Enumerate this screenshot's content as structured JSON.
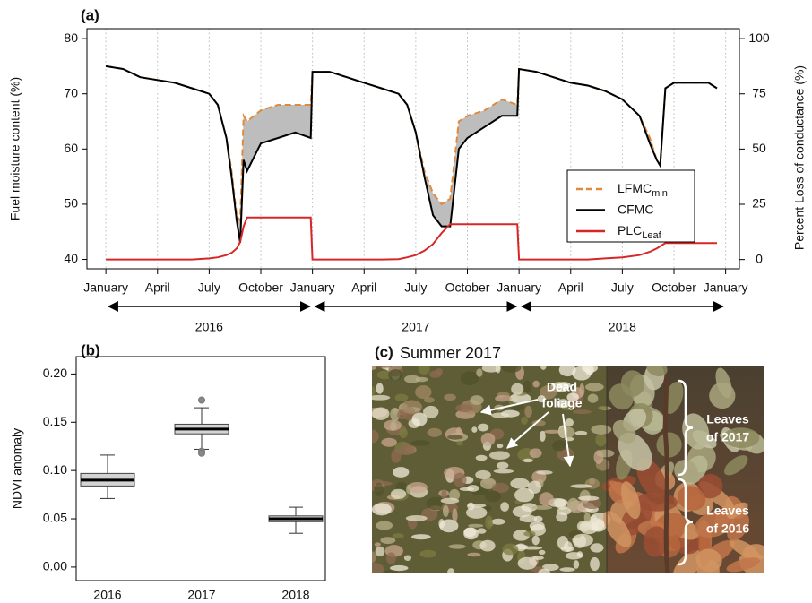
{
  "chart_data": [
    {
      "type": "line",
      "panel": "(a)",
      "y_label": "Fuel moisture content (%)",
      "y2_label": "Percent Loss  of conductance (%)",
      "x": [
        0,
        1,
        2,
        3,
        4,
        5,
        6,
        6.5,
        7,
        7.3,
        7.6,
        7.8,
        8,
        8.2,
        9,
        10,
        11,
        11.9,
        12,
        13,
        14,
        15,
        16,
        17,
        17.5,
        18,
        18.5,
        19,
        19.5,
        20,
        20.5,
        21,
        22,
        23,
        23.9,
        24,
        25,
        26,
        27,
        28,
        29,
        30,
        31,
        31.6,
        32,
        32.2,
        32.5,
        33,
        34,
        35,
        35.5
      ],
      "xlim": [
        -1.1,
        36.8
      ],
      "xticks": [
        {
          "value": 0,
          "label": "January"
        },
        {
          "value": 3,
          "label": "April"
        },
        {
          "value": 6,
          "label": "July"
        },
        {
          "value": 9,
          "label": "October"
        },
        {
          "value": 12,
          "label": "January"
        },
        {
          "value": 15,
          "label": "April"
        },
        {
          "value": 18,
          "label": "July"
        },
        {
          "value": 21,
          "label": "October"
        },
        {
          "value": 24,
          "label": "January"
        },
        {
          "value": 27,
          "label": "April"
        },
        {
          "value": 30,
          "label": "July"
        },
        {
          "value": 33,
          "label": "October"
        },
        {
          "value": 36,
          "label": "January"
        }
      ],
      "ylim": [
        38.3,
        81.8
      ],
      "yticks": [
        40,
        50,
        60,
        70,
        80
      ],
      "y2lim": [
        -4.2,
        104.5
      ],
      "y2ticks": [
        0,
        25,
        50,
        75,
        100
      ],
      "grid": "x",
      "legend_position": "center-right",
      "fill_between": {
        "series": [
          0,
          1
        ],
        "color": "#bdbdbd"
      },
      "year_bands": [
        {
          "label": "2016",
          "start": 0,
          "end": 12
        },
        {
          "label": "2017",
          "start": 12,
          "end": 24
        },
        {
          "label": "2018",
          "start": 24,
          "end": 36
        }
      ],
      "series": [
        {
          "name": "LFMC",
          "name_subscript": "min",
          "color": "#e08a3c",
          "linestyle": "dashed",
          "values": [
            75,
            74.5,
            73,
            72.5,
            72,
            71,
            70,
            68,
            62,
            56,
            48,
            47,
            66,
            65,
            67,
            68,
            68,
            68,
            74,
            74,
            73,
            72,
            71,
            70,
            68,
            63,
            56,
            52,
            50,
            51,
            65,
            66,
            67,
            69,
            68,
            74.5,
            74,
            73,
            72,
            71.5,
            70.5,
            69,
            66,
            62,
            58,
            57,
            71,
            72,
            72,
            72,
            71
          ]
        },
        {
          "name": "CFMC",
          "color": "#000000",
          "linestyle": "solid",
          "values": [
            75,
            74.5,
            73,
            72.5,
            72,
            71,
            70,
            68,
            62,
            55,
            47,
            43,
            58,
            56,
            61,
            62,
            63,
            62,
            74,
            74,
            73,
            72,
            71,
            70,
            68,
            63,
            55,
            48,
            46,
            46,
            60,
            62,
            64,
            66,
            66,
            74.5,
            74,
            73,
            72,
            71.5,
            70.5,
            69,
            66,
            61,
            58,
            57,
            71,
            72,
            72,
            72,
            71
          ]
        },
        {
          "name": "PLC",
          "name_subscript": "Leaf",
          "color": "#d62728",
          "linestyle": "solid",
          "axis": "y2",
          "values": [
            0,
            0,
            0,
            0,
            0,
            0,
            0.5,
            1,
            2,
            3,
            5,
            8,
            15,
            19,
            19,
            19,
            19,
            19,
            0,
            0,
            0,
            0,
            0,
            0.2,
            1,
            2,
            4,
            7,
            12,
            16,
            16,
            16,
            16,
            16,
            16,
            0,
            0,
            0,
            0,
            0,
            0.5,
            1,
            2,
            3.5,
            5,
            6,
            7.5,
            7.5,
            7.5,
            7.5,
            7.5
          ]
        }
      ]
    },
    {
      "type": "box",
      "panel": "(b)",
      "y_label": "NDVI anomaly",
      "categories": [
        "2016",
        "2017",
        "2018"
      ],
      "ylim": [
        -0.014,
        0.218
      ],
      "yticks": [
        {
          "value": 0,
          "label": "0.00"
        },
        0.05,
        {
          "value": 0.1,
          "label": "0.10"
        },
        0.15,
        {
          "value": 0.2,
          "label": "0.20"
        }
      ],
      "color": "#d3d3d3",
      "boxes": [
        {
          "whisker_low": 0.071,
          "q1": 0.084,
          "median": 0.09,
          "q3": 0.097,
          "whisker_high": 0.116,
          "outliers": []
        },
        {
          "whisker_low": 0.122,
          "q1": 0.138,
          "median": 0.143,
          "q3": 0.148,
          "whisker_high": 0.165,
          "outliers": [
            0.173,
            0.12,
            0.118
          ]
        },
        {
          "whisker_low": 0.035,
          "q1": 0.047,
          "median": 0.05,
          "q3": 0.053,
          "whisker_high": 0.062,
          "outliers": []
        }
      ]
    }
  ],
  "photo": {
    "panel": "(c)",
    "title": "Summer 2017",
    "dead_foliage": [
      "Dead",
      "foliage"
    ],
    "leaves_2017": [
      "Leaves",
      "of 2017"
    ],
    "leaves_2016": [
      "Leaves",
      "of 2016"
    ]
  }
}
